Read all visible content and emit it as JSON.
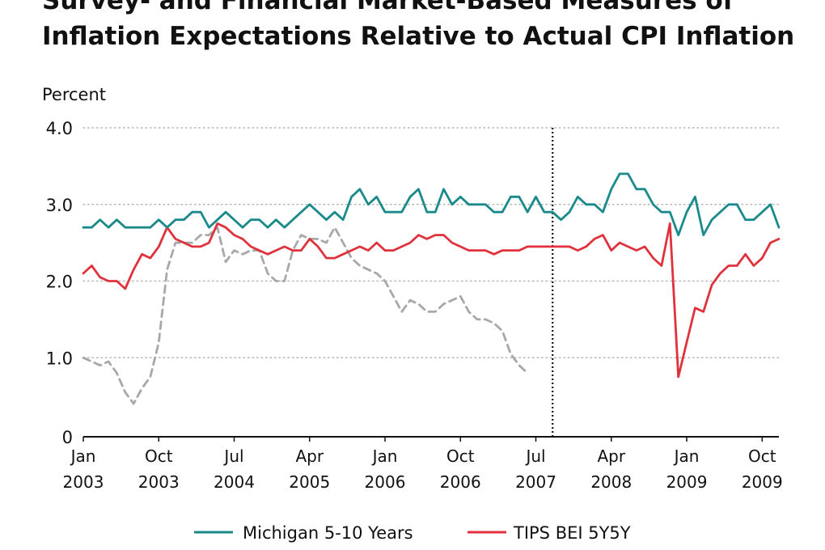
{
  "chart_data": {
    "type": "line",
    "title_lines": [
      "Survey- and Financial Market-Based Measures of",
      "Inflation Expectations Relative to Actual CPI Inflation"
    ],
    "ylabel": "Percent",
    "ylim": [
      0,
      4.0
    ],
    "y_ticks": [
      "0",
      "1.0",
      "2.0",
      "3.0",
      "4.0"
    ],
    "y_tick_values": [
      0,
      1,
      2,
      3,
      4
    ],
    "x_start": "2003-01",
    "x_end": "2009-12",
    "x_ticks": [
      {
        "month": "Jan",
        "year": "2003",
        "date": "2003-01"
      },
      {
        "month": "Oct",
        "year": "2003",
        "date": "2003-10"
      },
      {
        "month": "Jul",
        "year": "2004",
        "date": "2004-07"
      },
      {
        "month": "Apr",
        "year": "2005",
        "date": "2005-04"
      },
      {
        "month": "Jan",
        "year": "2006",
        "date": "2006-01"
      },
      {
        "month": "Oct",
        "year": "2006",
        "date": "2006-10"
      },
      {
        "month": "Jul",
        "year": "2007",
        "date": "2007-07"
      },
      {
        "month": "Apr",
        "year": "2008",
        "date": "2008-04"
      },
      {
        "month": "Jan",
        "year": "2009",
        "date": "2009-01"
      },
      {
        "month": "Oct",
        "year": "2009",
        "date": "2009-10"
      }
    ],
    "grid": true,
    "vline_date": "2007-09",
    "legend_position": "bottom",
    "series": [
      {
        "name": "Michigan 5-10 Years",
        "color": "#1a8a8a",
        "style": "solid",
        "points": [
          [
            "2003-01",
            2.7
          ],
          [
            "2003-02",
            2.7
          ],
          [
            "2003-03",
            2.8
          ],
          [
            "2003-04",
            2.7
          ],
          [
            "2003-05",
            2.8
          ],
          [
            "2003-06",
            2.7
          ],
          [
            "2003-07",
            2.7
          ],
          [
            "2003-08",
            2.7
          ],
          [
            "2003-09",
            2.7
          ],
          [
            "2003-10",
            2.8
          ],
          [
            "2003-11",
            2.7
          ],
          [
            "2003-12",
            2.8
          ],
          [
            "2004-01",
            2.8
          ],
          [
            "2004-02",
            2.9
          ],
          [
            "2004-03",
            2.9
          ],
          [
            "2004-04",
            2.7
          ],
          [
            "2004-05",
            2.8
          ],
          [
            "2004-06",
            2.9
          ],
          [
            "2004-07",
            2.8
          ],
          [
            "2004-08",
            2.7
          ],
          [
            "2004-09",
            2.8
          ],
          [
            "2004-10",
            2.8
          ],
          [
            "2004-11",
            2.7
          ],
          [
            "2004-12",
            2.8
          ],
          [
            "2005-01",
            2.7
          ],
          [
            "2005-02",
            2.8
          ],
          [
            "2005-03",
            2.9
          ],
          [
            "2005-04",
            3.0
          ],
          [
            "2005-05",
            2.9
          ],
          [
            "2005-06",
            2.8
          ],
          [
            "2005-07",
            2.9
          ],
          [
            "2005-08",
            2.8
          ],
          [
            "2005-09",
            3.1
          ],
          [
            "2005-10",
            3.2
          ],
          [
            "2005-11",
            3.0
          ],
          [
            "2005-12",
            3.1
          ],
          [
            "2006-01",
            2.9
          ],
          [
            "2006-02",
            2.9
          ],
          [
            "2006-03",
            2.9
          ],
          [
            "2006-04",
            3.1
          ],
          [
            "2006-05",
            3.2
          ],
          [
            "2006-06",
            2.9
          ],
          [
            "2006-07",
            2.9
          ],
          [
            "2006-08",
            3.2
          ],
          [
            "2006-09",
            3.0
          ],
          [
            "2006-10",
            3.1
          ],
          [
            "2006-11",
            3.0
          ],
          [
            "2006-12",
            3.0
          ],
          [
            "2007-01",
            3.0
          ],
          [
            "2007-02",
            2.9
          ],
          [
            "2007-03",
            2.9
          ],
          [
            "2007-04",
            3.1
          ],
          [
            "2007-05",
            3.1
          ],
          [
            "2007-06",
            2.9
          ],
          [
            "2007-07",
            3.1
          ],
          [
            "2007-08",
            2.9
          ],
          [
            "2007-09",
            2.9
          ],
          [
            "2007-10",
            2.8
          ],
          [
            "2007-11",
            2.9
          ],
          [
            "2007-12",
            3.1
          ],
          [
            "2008-01",
            3.0
          ],
          [
            "2008-02",
            3.0
          ],
          [
            "2008-03",
            2.9
          ],
          [
            "2008-04",
            3.2
          ],
          [
            "2008-05",
            3.4
          ],
          [
            "2008-06",
            3.4
          ],
          [
            "2008-07",
            3.2
          ],
          [
            "2008-08",
            3.2
          ],
          [
            "2008-09",
            3.0
          ],
          [
            "2008-10",
            2.9
          ],
          [
            "2008-11",
            2.9
          ],
          [
            "2008-12",
            2.6
          ],
          [
            "2009-01",
            2.9
          ],
          [
            "2009-02",
            3.1
          ],
          [
            "2009-03",
            2.6
          ],
          [
            "2009-04",
            2.8
          ],
          [
            "2009-05",
            2.9
          ],
          [
            "2009-06",
            3.0
          ],
          [
            "2009-07",
            3.0
          ],
          [
            "2009-08",
            2.8
          ],
          [
            "2009-09",
            2.8
          ],
          [
            "2009-10",
            2.9
          ],
          [
            "2009-11",
            3.0
          ],
          [
            "2009-12",
            2.7
          ]
        ]
      },
      {
        "name": "TIPS BEI 5Y5Y",
        "color": "#e0323c",
        "style": "solid",
        "points": [
          [
            "2003-01",
            2.1
          ],
          [
            "2003-02",
            2.2
          ],
          [
            "2003-03",
            2.05
          ],
          [
            "2003-04",
            2.0
          ],
          [
            "2003-05",
            2.0
          ],
          [
            "2003-06",
            1.9
          ],
          [
            "2003-07",
            2.15
          ],
          [
            "2003-08",
            2.35
          ],
          [
            "2003-09",
            2.3
          ],
          [
            "2003-10",
            2.45
          ],
          [
            "2003-11",
            2.7
          ],
          [
            "2003-12",
            2.55
          ],
          [
            "2004-01",
            2.5
          ],
          [
            "2004-02",
            2.45
          ],
          [
            "2004-03",
            2.45
          ],
          [
            "2004-04",
            2.5
          ],
          [
            "2004-05",
            2.75
          ],
          [
            "2004-06",
            2.7
          ],
          [
            "2004-07",
            2.6
          ],
          [
            "2004-08",
            2.55
          ],
          [
            "2004-09",
            2.45
          ],
          [
            "2004-10",
            2.4
          ],
          [
            "2004-11",
            2.35
          ],
          [
            "2004-12",
            2.4
          ],
          [
            "2005-01",
            2.45
          ],
          [
            "2005-02",
            2.4
          ],
          [
            "2005-03",
            2.4
          ],
          [
            "2005-04",
            2.55
          ],
          [
            "2005-05",
            2.45
          ],
          [
            "2005-06",
            2.3
          ],
          [
            "2005-07",
            2.3
          ],
          [
            "2005-08",
            2.35
          ],
          [
            "2005-09",
            2.4
          ],
          [
            "2005-10",
            2.45
          ],
          [
            "2005-11",
            2.4
          ],
          [
            "2005-12",
            2.5
          ],
          [
            "2006-01",
            2.4
          ],
          [
            "2006-02",
            2.4
          ],
          [
            "2006-03",
            2.45
          ],
          [
            "2006-04",
            2.5
          ],
          [
            "2006-05",
            2.6
          ],
          [
            "2006-06",
            2.55
          ],
          [
            "2006-07",
            2.6
          ],
          [
            "2006-08",
            2.6
          ],
          [
            "2006-09",
            2.5
          ],
          [
            "2006-10",
            2.45
          ],
          [
            "2006-11",
            2.4
          ],
          [
            "2006-12",
            2.4
          ],
          [
            "2007-01",
            2.4
          ],
          [
            "2007-02",
            2.35
          ],
          [
            "2007-03",
            2.4
          ],
          [
            "2007-04",
            2.4
          ],
          [
            "2007-05",
            2.4
          ],
          [
            "2007-06",
            2.45
          ],
          [
            "2007-07",
            2.45
          ],
          [
            "2007-08",
            2.45
          ],
          [
            "2007-09",
            2.45
          ],
          [
            "2007-10",
            2.45
          ],
          [
            "2007-11",
            2.45
          ],
          [
            "2007-12",
            2.4
          ],
          [
            "2008-01",
            2.45
          ],
          [
            "2008-02",
            2.55
          ],
          [
            "2008-03",
            2.6
          ],
          [
            "2008-04",
            2.4
          ],
          [
            "2008-05",
            2.5
          ],
          [
            "2008-06",
            2.45
          ],
          [
            "2008-07",
            2.4
          ],
          [
            "2008-08",
            2.45
          ],
          [
            "2008-09",
            2.3
          ],
          [
            "2008-10",
            2.2
          ],
          [
            "2008-11",
            2.75
          ],
          [
            "2008-12",
            0.75
          ],
          [
            "2009-01",
            1.2
          ],
          [
            "2009-02",
            1.65
          ],
          [
            "2009-03",
            1.6
          ],
          [
            "2009-04",
            1.95
          ],
          [
            "2009-05",
            2.1
          ],
          [
            "2009-06",
            2.2
          ],
          [
            "2009-07",
            2.2
          ],
          [
            "2009-08",
            2.35
          ],
          [
            "2009-09",
            2.2
          ],
          [
            "2009-10",
            2.3
          ],
          [
            "2009-11",
            2.5
          ],
          [
            "2009-12",
            2.55
          ]
        ]
      },
      {
        "color": "#a8a8a8",
        "style": "dashed",
        "points": [
          [
            "2003-01",
            1.0
          ],
          [
            "2003-02",
            0.95
          ],
          [
            "2003-03",
            0.9
          ],
          [
            "2003-04",
            0.95
          ],
          [
            "2003-05",
            0.8
          ],
          [
            "2003-06",
            0.55
          ],
          [
            "2003-07",
            0.4
          ],
          [
            "2003-08",
            0.6
          ],
          [
            "2003-09",
            0.75
          ],
          [
            "2003-10",
            1.2
          ],
          [
            "2003-11",
            2.15
          ],
          [
            "2003-12",
            2.5
          ],
          [
            "2004-01",
            2.5
          ],
          [
            "2004-02",
            2.5
          ],
          [
            "2004-03",
            2.6
          ],
          [
            "2004-04",
            2.6
          ],
          [
            "2004-05",
            2.7
          ],
          [
            "2004-06",
            2.25
          ],
          [
            "2004-07",
            2.4
          ],
          [
            "2004-08",
            2.35
          ],
          [
            "2004-09",
            2.4
          ],
          [
            "2004-10",
            2.4
          ],
          [
            "2004-11",
            2.1
          ],
          [
            "2004-12",
            2.0
          ],
          [
            "2005-01",
            2.0
          ],
          [
            "2005-02",
            2.4
          ],
          [
            "2005-03",
            2.6
          ],
          [
            "2005-04",
            2.55
          ],
          [
            "2005-05",
            2.55
          ],
          [
            "2005-06",
            2.5
          ],
          [
            "2005-07",
            2.7
          ],
          [
            "2005-08",
            2.5
          ],
          [
            "2005-09",
            2.3
          ],
          [
            "2005-10",
            2.2
          ],
          [
            "2005-11",
            2.15
          ],
          [
            "2005-12",
            2.1
          ],
          [
            "2006-01",
            2.0
          ],
          [
            "2006-02",
            1.8
          ],
          [
            "2006-03",
            1.6
          ],
          [
            "2006-04",
            1.75
          ],
          [
            "2006-05",
            1.7
          ],
          [
            "2006-06",
            1.6
          ],
          [
            "2006-07",
            1.6
          ],
          [
            "2006-08",
            1.7
          ],
          [
            "2006-09",
            1.75
          ],
          [
            "2006-10",
            1.8
          ],
          [
            "2006-11",
            1.6
          ],
          [
            "2006-12",
            1.5
          ],
          [
            "2007-01",
            1.5
          ],
          [
            "2007-02",
            1.45
          ],
          [
            "2007-03",
            1.35
          ],
          [
            "2007-04",
            1.05
          ],
          [
            "2007-05",
            0.9
          ],
          [
            "2007-06",
            0.8
          ]
        ]
      }
    ]
  }
}
